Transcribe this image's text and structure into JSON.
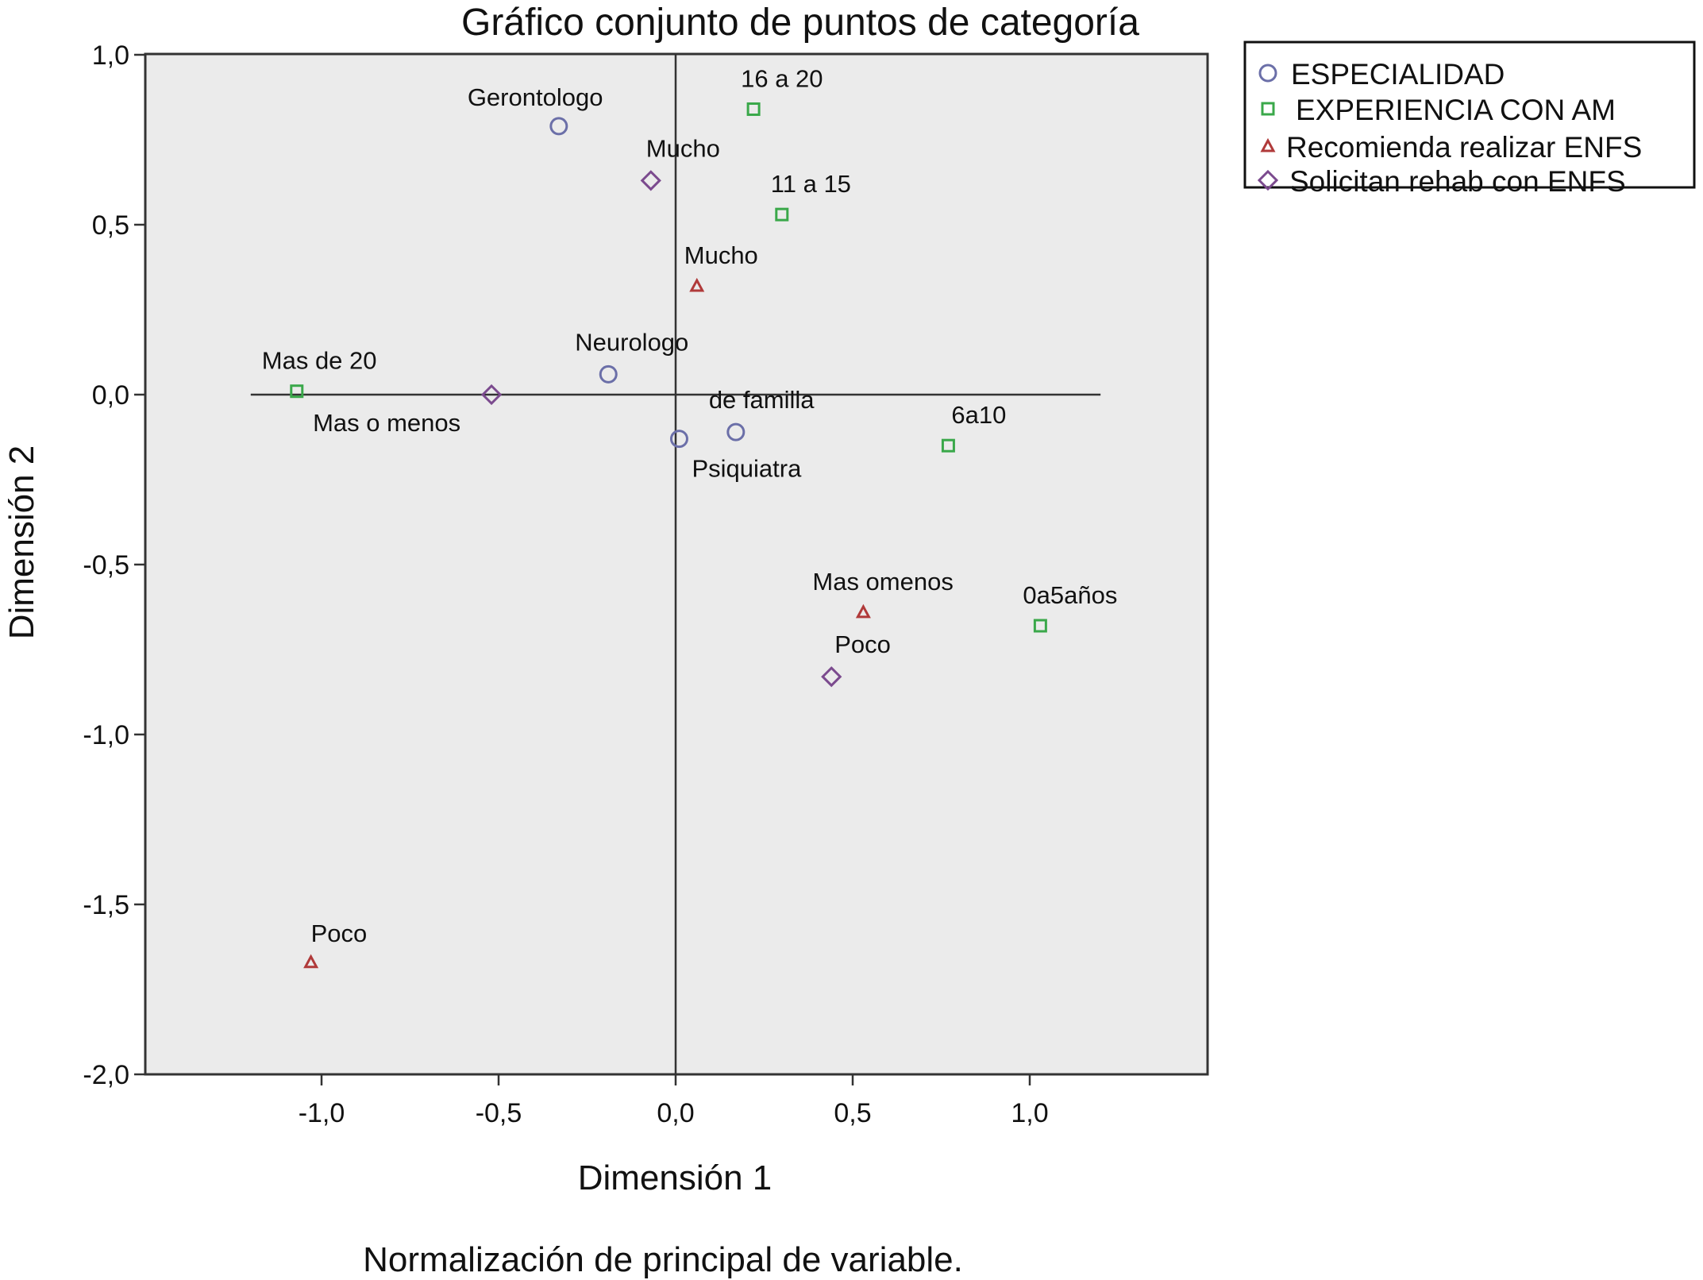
{
  "chart_data": {
    "type": "scatter",
    "title": "Gráfico conjunto de puntos de categoría",
    "xlabel": "Dimensión 1",
    "ylabel": "Dimensión 2",
    "note": "Normalización de principal de variable.",
    "xlim": [
      -1.5,
      1.5
    ],
    "ylim": [
      -2.0,
      1.0
    ],
    "x_ticks": [
      -1.0,
      -0.5,
      0.0,
      0.5,
      1.0
    ],
    "x_tick_labels": [
      "-1,0",
      "-0,5",
      "0,0",
      "0,5",
      "1,0"
    ],
    "y_ticks": [
      1.0,
      0.5,
      0.0,
      -0.5,
      -1.0,
      -1.5,
      -2.0
    ],
    "y_tick_labels": [
      "1,0",
      "0,5",
      "0,0",
      "-0,5",
      "-1,0",
      "-1,5",
      "-2,0"
    ],
    "reference_lines": {
      "x": 0,
      "y": 0,
      "x_extent": [
        -1.2,
        1.2
      ]
    },
    "legend_position": "top-right, outside plot",
    "plot_background": "#ebebeb",
    "series": [
      {
        "name": "ESPECIALIDAD",
        "marker": "circle",
        "color": "#6b6fa8",
        "points": [
          {
            "label": "Gerontologo",
            "x": -0.33,
            "y": 0.79
          },
          {
            "label": "Neurologo",
            "x": -0.19,
            "y": 0.06
          },
          {
            "label": "de familla",
            "x": 0.17,
            "y": -0.11
          },
          {
            "label": "Psiquiatra",
            "x": 0.01,
            "y": -0.13
          }
        ]
      },
      {
        "name": "EXPERIENCIA CON AM",
        "marker": "square",
        "color": "#3aa84a",
        "points": [
          {
            "label": "16 a 20",
            "x": 0.22,
            "y": 0.84
          },
          {
            "label": "11 a 15",
            "x": 0.3,
            "y": 0.53
          },
          {
            "label": "Mas de 20",
            "x": -1.07,
            "y": 0.01
          },
          {
            "label": "6a10",
            "x": 0.77,
            "y": -0.15
          },
          {
            "label": "0a5años",
            "x": 1.03,
            "y": -0.68
          }
        ]
      },
      {
        "name": "Recomienda realizar ENFS",
        "marker": "triangle",
        "color": "#b03a3a",
        "points": [
          {
            "label": "Mucho",
            "x": 0.06,
            "y": 0.32
          },
          {
            "label": "Mas omenos",
            "x": 0.53,
            "y": -0.64
          },
          {
            "label": "Poco",
            "x": -1.03,
            "y": -1.67
          }
        ]
      },
      {
        "name": "Solicitan rehab con ENFS",
        "marker": "diamond",
        "color": "#7b4a8e",
        "points": [
          {
            "label": "Mucho",
            "x": -0.07,
            "y": 0.63
          },
          {
            "label": "Mas o menos",
            "x": -0.52,
            "y": 0.0
          },
          {
            "label": "Poco",
            "x": 0.44,
            "y": -0.83
          }
        ]
      }
    ]
  }
}
